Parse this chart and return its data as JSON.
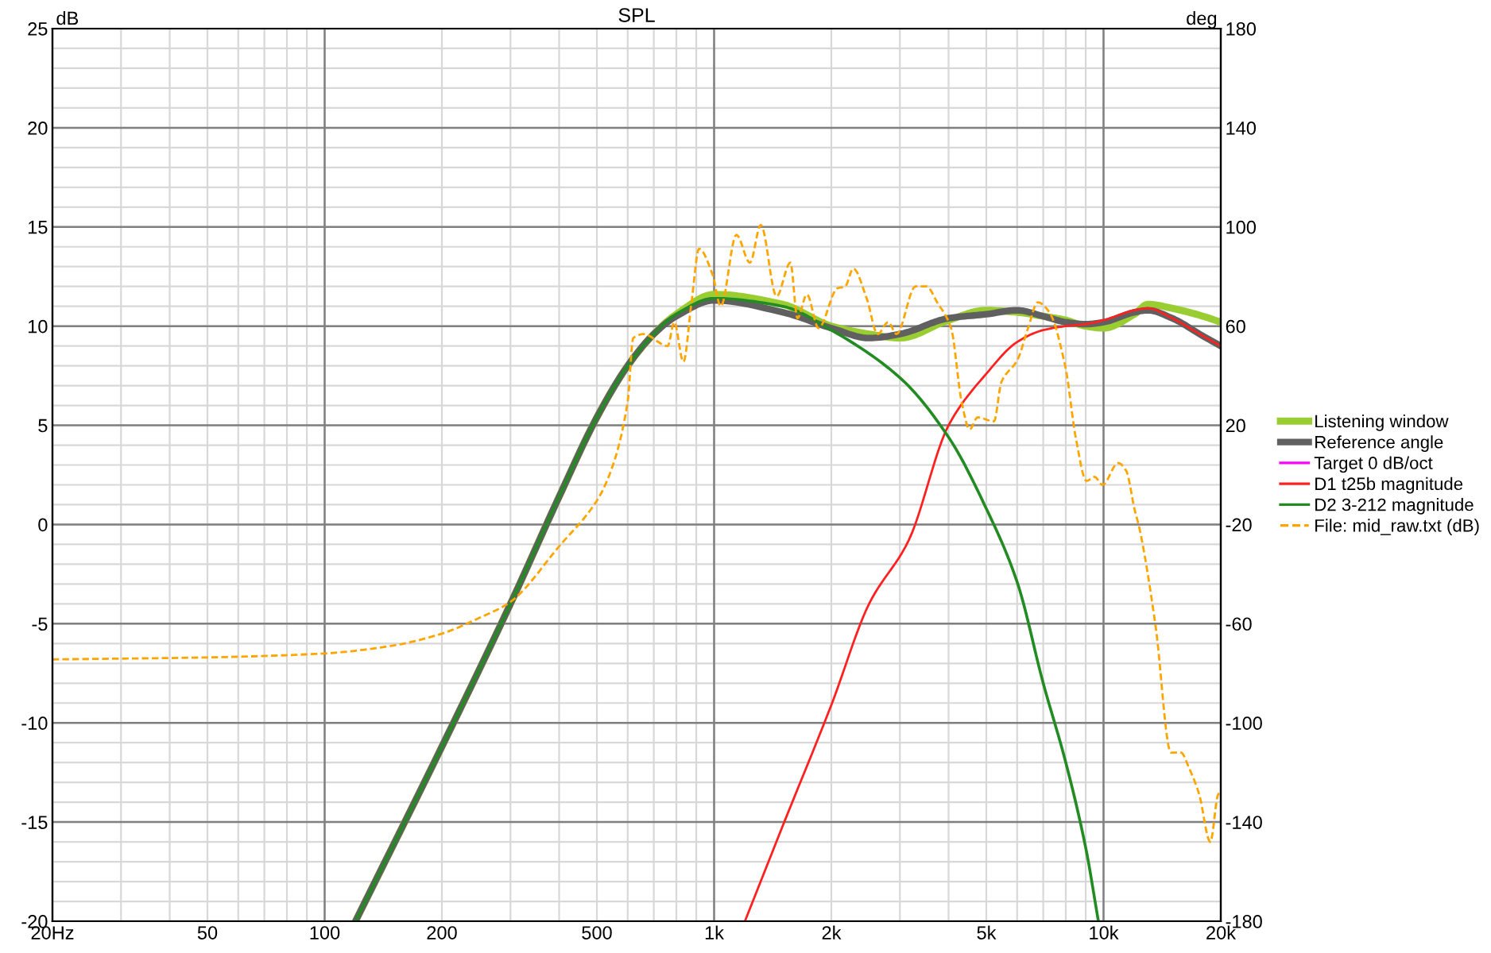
{
  "chart_data": {
    "type": "line",
    "title": "SPL",
    "ylabel": "dB",
    "y2label": "deg",
    "log": "x",
    "grid": true,
    "legend": "right",
    "xlim": [
      20,
      20000
    ],
    "xticks": [
      {
        "value": 20,
        "label": "20Hz"
      },
      50,
      100,
      200,
      500,
      {
        "value": 1000,
        "label": "1k"
      },
      {
        "value": 2000,
        "label": "2k"
      },
      {
        "value": 5000,
        "label": "5k"
      },
      {
        "value": 10000,
        "label": "10k"
      },
      {
        "value": 20000,
        "label": "20k"
      }
    ],
    "ylim": [
      -20,
      25
    ],
    "yticks": [
      -20,
      -15,
      -10,
      -5,
      0,
      5,
      10,
      15,
      20,
      25
    ],
    "y2lim": [
      -180,
      180
    ],
    "y2ticks": [
      -180,
      -140,
      -100,
      -60,
      -20,
      20,
      60,
      100,
      140,
      180
    ],
    "series": [
      {
        "name": "Listening window",
        "color": "#9acd32",
        "line_style": "solid",
        "x": [
          120,
          200,
          300,
          400,
          500,
          600,
          700,
          800,
          1000,
          1500,
          2000,
          2500,
          3000,
          4000,
          5000,
          6000,
          7000,
          8000,
          9000,
          10000,
          12000,
          13000,
          15000,
          18000,
          20000
        ],
        "values": [
          -20,
          -11.2,
          -4.0,
          1.4,
          5.4,
          8.0,
          9.6,
          10.6,
          11.6,
          11.1,
          10.0,
          9.6,
          9.4,
          10.3,
          10.8,
          10.7,
          10.5,
          10.3,
          10.0,
          9.9,
          10.6,
          11.1,
          10.9,
          10.5,
          10.2
        ]
      },
      {
        "name": "Reference angle",
        "color": "#606060",
        "line_style": "solid",
        "x": [
          120,
          200,
          300,
          400,
          500,
          600,
          700,
          800,
          1000,
          1500,
          2000,
          2500,
          3000,
          4000,
          5000,
          6000,
          7000,
          8000,
          9000,
          10000,
          12000,
          13000,
          15000,
          18000,
          20000
        ],
        "values": [
          -20,
          -11.2,
          -4.0,
          1.4,
          5.4,
          8.0,
          9.6,
          10.5,
          11.3,
          10.7,
          9.9,
          9.4,
          9.6,
          10.4,
          10.6,
          10.8,
          10.5,
          10.2,
          10.1,
          10.2,
          10.7,
          10.8,
          10.4,
          9.5,
          9.0
        ]
      },
      {
        "name": "Target 0 dB/oct",
        "color": "#ff00ff",
        "line_style": "solid"
      },
      {
        "name": "D1 t25b magnitude",
        "color": "#ff2020",
        "line_style": "solid",
        "x": [
          1200,
          1500,
          2000,
          2500,
          3160,
          4000,
          5000,
          6000,
          7000,
          8000,
          9000,
          10000,
          12000,
          13000,
          15000,
          18000,
          20000
        ],
        "values": [
          -20,
          -15.2,
          -9.1,
          -4.0,
          -0.8,
          5.0,
          7.6,
          9.2,
          9.8,
          10.0,
          10.1,
          10.3,
          10.8,
          10.9,
          10.4,
          9.5,
          9.0
        ]
      },
      {
        "name": "D2 3-212 magnitude",
        "color": "#228b22",
        "line_style": "solid",
        "x": [
          120,
          200,
          300,
          400,
          500,
          600,
          700,
          800,
          1000,
          1500,
          2000,
          3000,
          4000,
          5000,
          6000,
          7000,
          8000,
          9000,
          9700
        ],
        "values": [
          -20,
          -11.2,
          -4.0,
          1.4,
          5.4,
          8.0,
          9.6,
          10.6,
          11.4,
          11.0,
          9.8,
          7.4,
          4.4,
          0.8,
          -2.9,
          -8.0,
          -12.0,
          -16.3,
          -20
        ]
      },
      {
        "name": "File: mid_raw.txt (dB)",
        "color": "#ffa500",
        "line_style": "dashed",
        "x": [
          20,
          50,
          100,
          150,
          200,
          250,
          300,
          400,
          500,
          550,
          600,
          620,
          659,
          760,
          790,
          834,
          875,
          915,
          991,
          1040,
          1141,
          1236,
          1318,
          1447,
          1570,
          1637,
          1731,
          1854,
          2070,
          2170,
          2277,
          2465,
          2630,
          2800,
          2940,
          3290,
          3510,
          3740,
          4060,
          4320,
          4530,
          4750,
          5230,
          5470,
          6010,
          6400,
          6780,
          7260,
          7970,
          8500,
          9040,
          9480,
          9940,
          10900,
          11440,
          12000,
          12400,
          13600,
          14900,
          15800,
          16600,
          17600,
          18800,
          19700,
          20000
        ],
        "values": [
          -6.8,
          -6.7,
          -6.5,
          -6.1,
          -5.5,
          -4.7,
          -3.9,
          -1.1,
          1.2,
          3.0,
          6.2,
          9.4,
          9.6,
          9.0,
          10.2,
          8.2,
          11.2,
          13.9,
          12.6,
          11.0,
          14.6,
          13.2,
          15.1,
          11.5,
          13.2,
          10.4,
          11.6,
          9.9,
          11.9,
          12.0,
          12.9,
          11.4,
          9.6,
          10.2,
          9.6,
          12.0,
          12.0,
          11.2,
          9.9,
          6.2,
          4.8,
          5.4,
          5.2,
          7.2,
          8.3,
          9.9,
          11.2,
          10.7,
          8.0,
          4.3,
          2.2,
          2.4,
          2.0,
          3.1,
          2.7,
          0.8,
          -0.3,
          -5.1,
          -11.5,
          -11.5,
          -12.3,
          -13.6,
          -16.0,
          -13.6,
          -13.5
        ]
      }
    ]
  }
}
